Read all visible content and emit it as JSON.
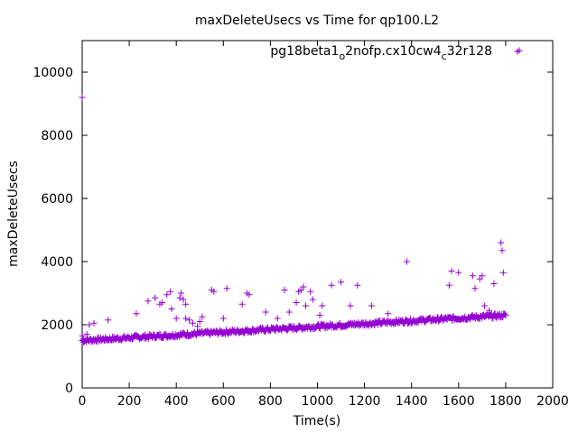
{
  "chart_data": {
    "type": "scatter",
    "title": "maxDeleteUsecs vs Time for qp100.L2",
    "xlabel": "Time(s)",
    "ylabel": "maxDeleteUsecs",
    "xlim": [
      0,
      2000
    ],
    "ylim": [
      0,
      11000
    ],
    "xticks": [
      "0",
      "200",
      "400",
      "600",
      "800",
      "1000",
      "1200",
      "1400",
      "1600",
      "1800",
      "2000"
    ],
    "yticks": [
      "0",
      "2000",
      "4000",
      "6000",
      "8000",
      "10000"
    ],
    "legend_placement": "top-right",
    "grid": false,
    "marker": "plus",
    "color": "#9400d3",
    "series": [
      {
        "name_parts": [
          "pg18beta1",
          "o",
          "2nofp.cx10cw4",
          "c",
          "32r128"
        ],
        "baseline": {
          "x_start": 0,
          "x_end": 1800,
          "y_start": 1500,
          "y_end": 2300
        },
        "outliers": [
          [
            0,
            9200
          ],
          [
            1,
            1650
          ],
          [
            5,
            1550
          ],
          [
            20,
            1700
          ],
          [
            30,
            2000
          ],
          [
            50,
            2050
          ],
          [
            110,
            2150
          ],
          [
            230,
            2350
          ],
          [
            280,
            2750
          ],
          [
            310,
            2850
          ],
          [
            330,
            2650
          ],
          [
            340,
            2700
          ],
          [
            360,
            2950
          ],
          [
            375,
            3050
          ],
          [
            380,
            2500
          ],
          [
            400,
            2200
          ],
          [
            415,
            2850
          ],
          [
            420,
            3000
          ],
          [
            430,
            2800
          ],
          [
            440,
            2650
          ],
          [
            440,
            2200
          ],
          [
            455,
            2150
          ],
          [
            470,
            2050
          ],
          [
            490,
            1950
          ],
          [
            500,
            2100
          ],
          [
            510,
            2250
          ],
          [
            550,
            3100
          ],
          [
            560,
            3050
          ],
          [
            600,
            2200
          ],
          [
            615,
            3150
          ],
          [
            680,
            2650
          ],
          [
            700,
            3000
          ],
          [
            710,
            2950
          ],
          [
            780,
            2400
          ],
          [
            830,
            2200
          ],
          [
            860,
            3100
          ],
          [
            880,
            2400
          ],
          [
            910,
            2700
          ],
          [
            920,
            3050
          ],
          [
            930,
            3100
          ],
          [
            940,
            3200
          ],
          [
            950,
            2600
          ],
          [
            970,
            3050
          ],
          [
            980,
            2800
          ],
          [
            1010,
            2300
          ],
          [
            1020,
            2600
          ],
          [
            1060,
            3250
          ],
          [
            1100,
            3350
          ],
          [
            1140,
            2600
          ],
          [
            1170,
            3250
          ],
          [
            1230,
            2600
          ],
          [
            1300,
            2350
          ],
          [
            1380,
            4000
          ],
          [
            1560,
            3250
          ],
          [
            1570,
            3700
          ],
          [
            1600,
            3650
          ],
          [
            1660,
            3550
          ],
          [
            1670,
            3150
          ],
          [
            1690,
            3450
          ],
          [
            1700,
            3550
          ],
          [
            1710,
            2600
          ],
          [
            1730,
            2450
          ],
          [
            1750,
            3300
          ],
          [
            1780,
            4600
          ],
          [
            1785,
            4350
          ],
          [
            1790,
            3650
          ],
          [
            1850,
            10650
          ]
        ]
      }
    ]
  }
}
